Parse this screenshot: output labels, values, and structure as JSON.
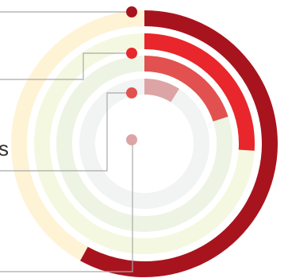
{
  "chart_data": {
    "type": "radial-bar",
    "series": [
      {
        "name": "",
        "value": 58,
        "color": "#A8141E",
        "track_color": "#FFF3D6"
      },
      {
        "name": "",
        "value": 26,
        "color": "#E8262B",
        "track_color": "#F4F8E0"
      },
      {
        "name": "",
        "value": 20,
        "color": "#E2514F",
        "track_color": "#EEF4E4"
      },
      {
        "name": "",
        "value": 9,
        "color": "#DDA4A6",
        "track_color": "#F1F4F3"
      }
    ],
    "max": 100,
    "ticks": [
      {
        "label": "s"
      }
    ]
  }
}
